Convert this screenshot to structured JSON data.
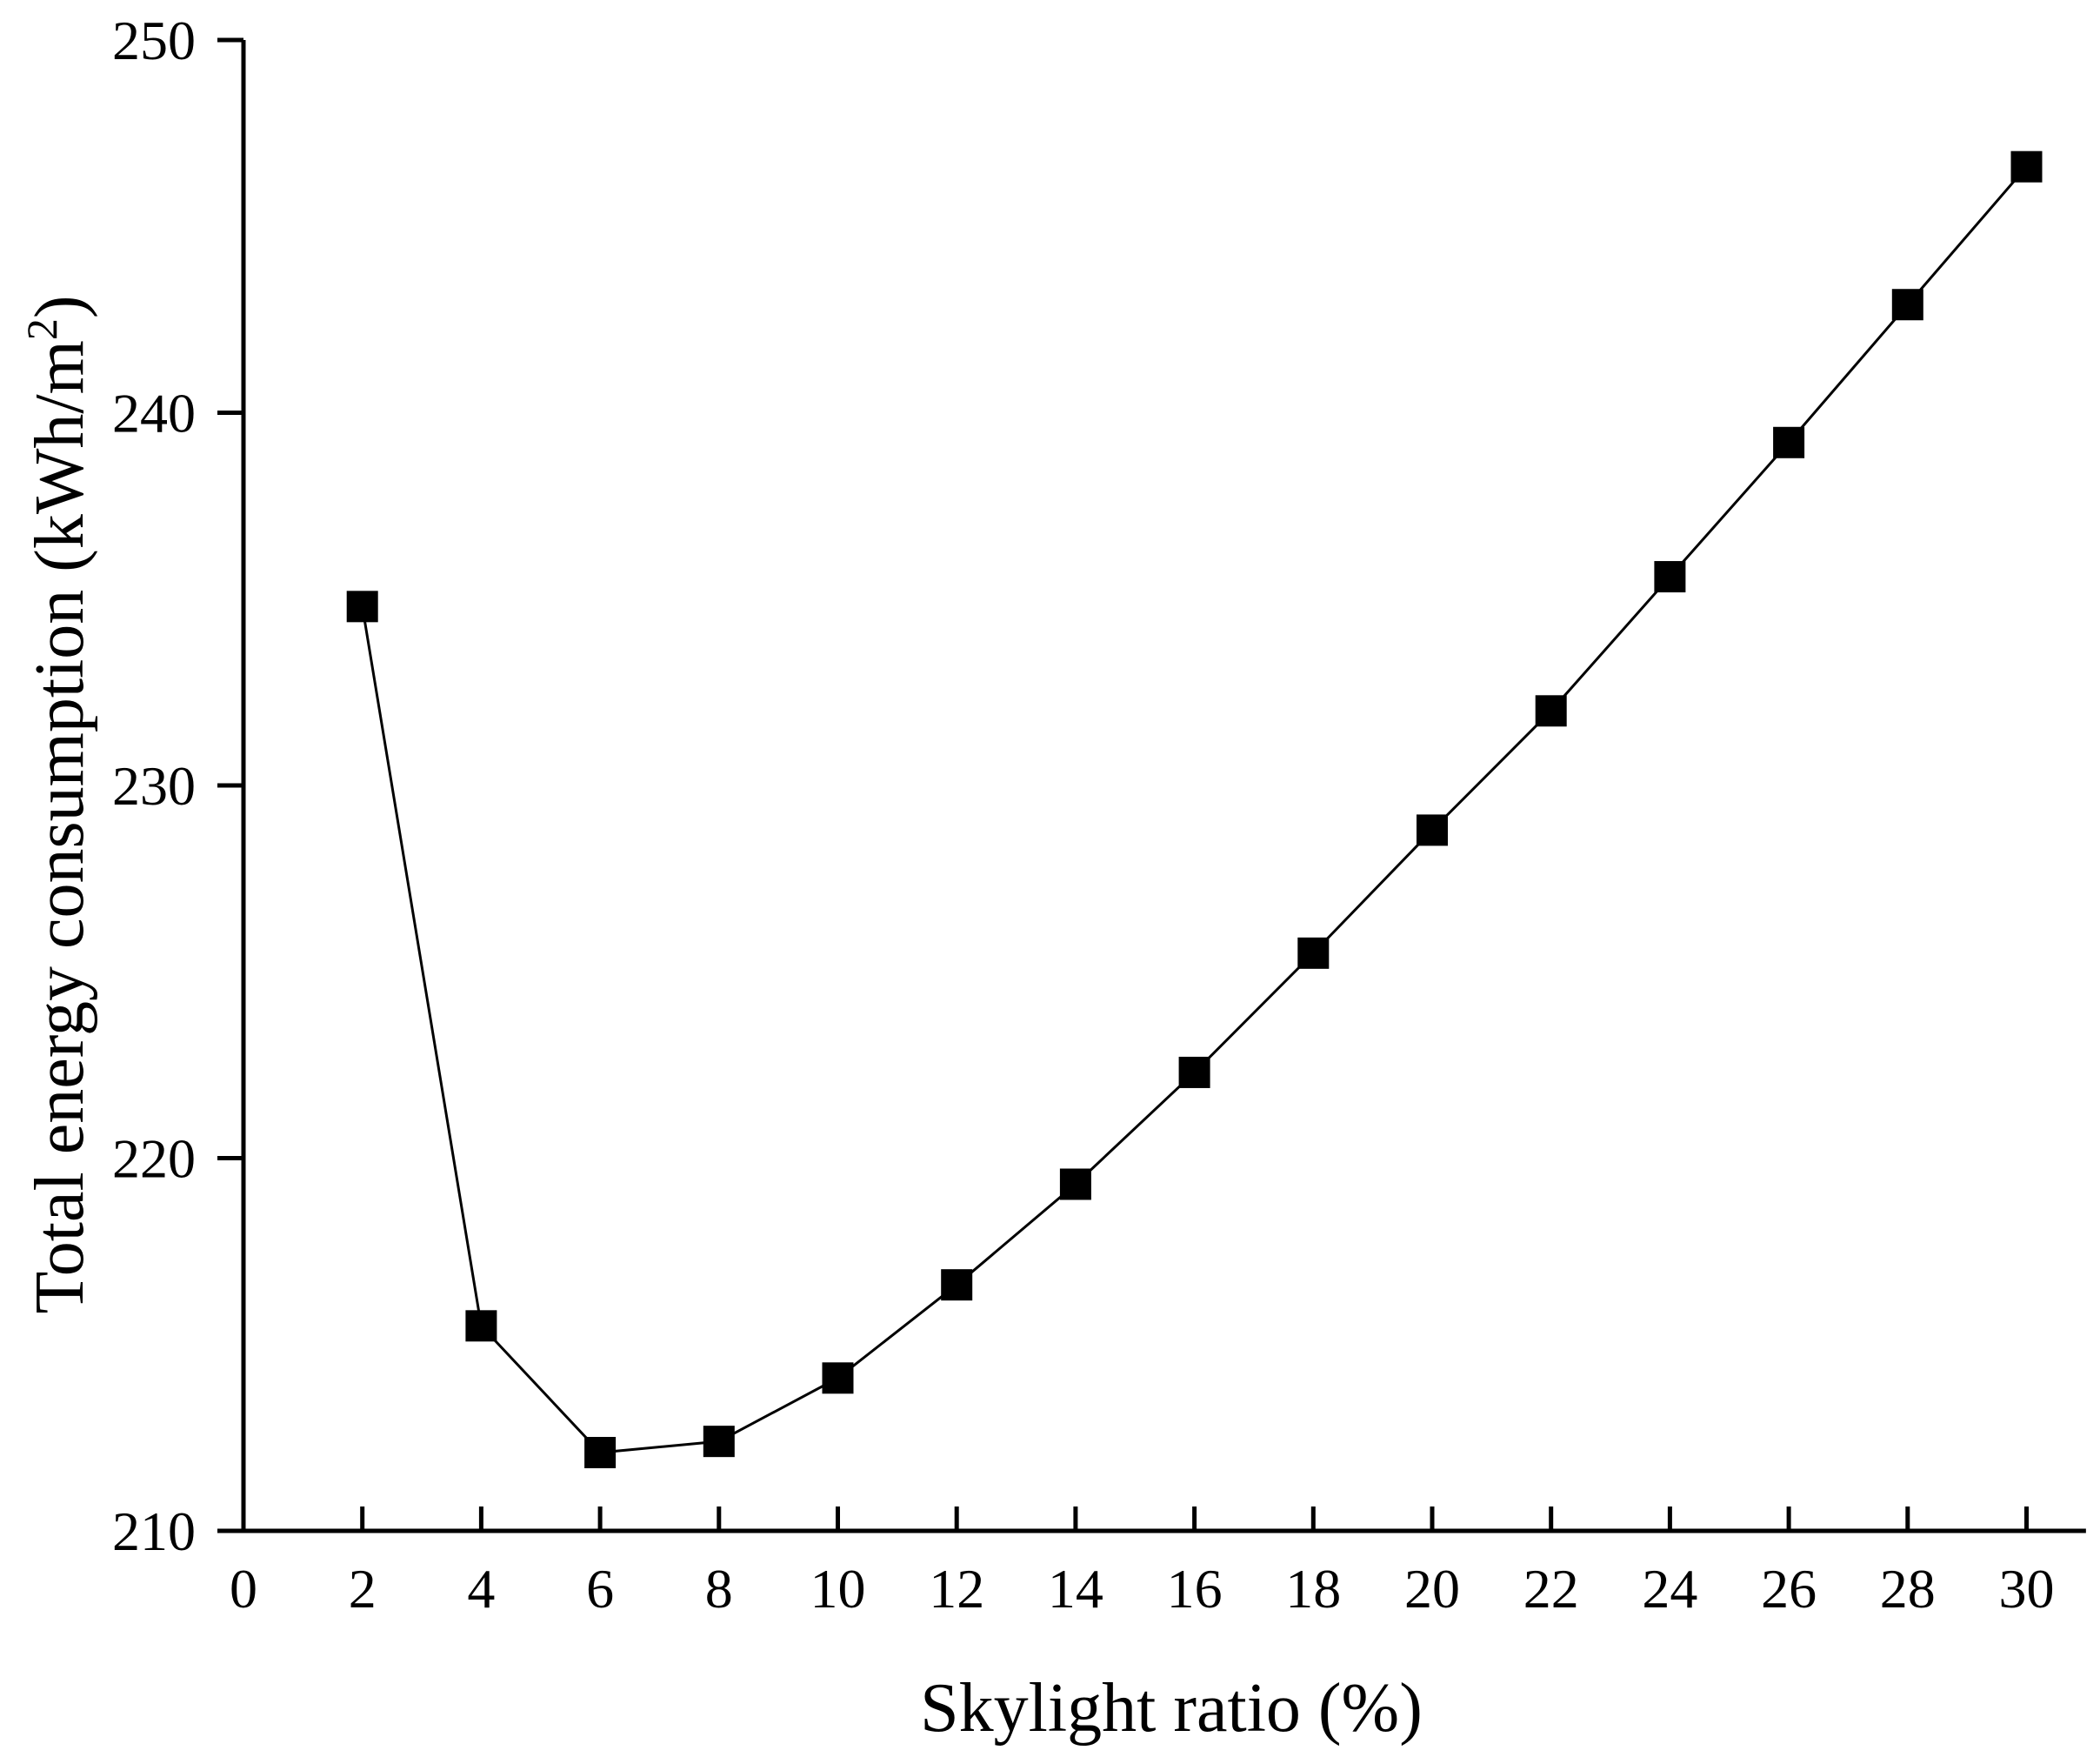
{
  "chart_data": {
    "type": "line",
    "title": "",
    "xlabel": "Skylight ratio (%)",
    "ylabel_main": "Total energy consumption (kWh/m",
    "ylabel_sup": "2",
    "ylabel_close": ")",
    "xlim": [
      0,
      31
    ],
    "ylim": [
      210,
      250
    ],
    "xticks": [
      0,
      2,
      4,
      6,
      8,
      10,
      12,
      14,
      16,
      18,
      20,
      22,
      24,
      26,
      28,
      30
    ],
    "yticks": [
      210,
      220,
      230,
      240,
      250
    ],
    "grid": false,
    "legend": "none",
    "marker": "square",
    "color": "#000000",
    "series": [
      {
        "x": [
          2,
          4,
          6,
          8,
          10,
          12,
          14,
          16,
          18,
          20,
          22,
          24,
          26,
          28,
          30
        ],
        "y": [
          234.8,
          215.5,
          212.1,
          212.4,
          214.1,
          216.6,
          219.3,
          222.3,
          225.5,
          228.8,
          232.0,
          235.6,
          239.2,
          242.9,
          246.6
        ]
      }
    ]
  }
}
